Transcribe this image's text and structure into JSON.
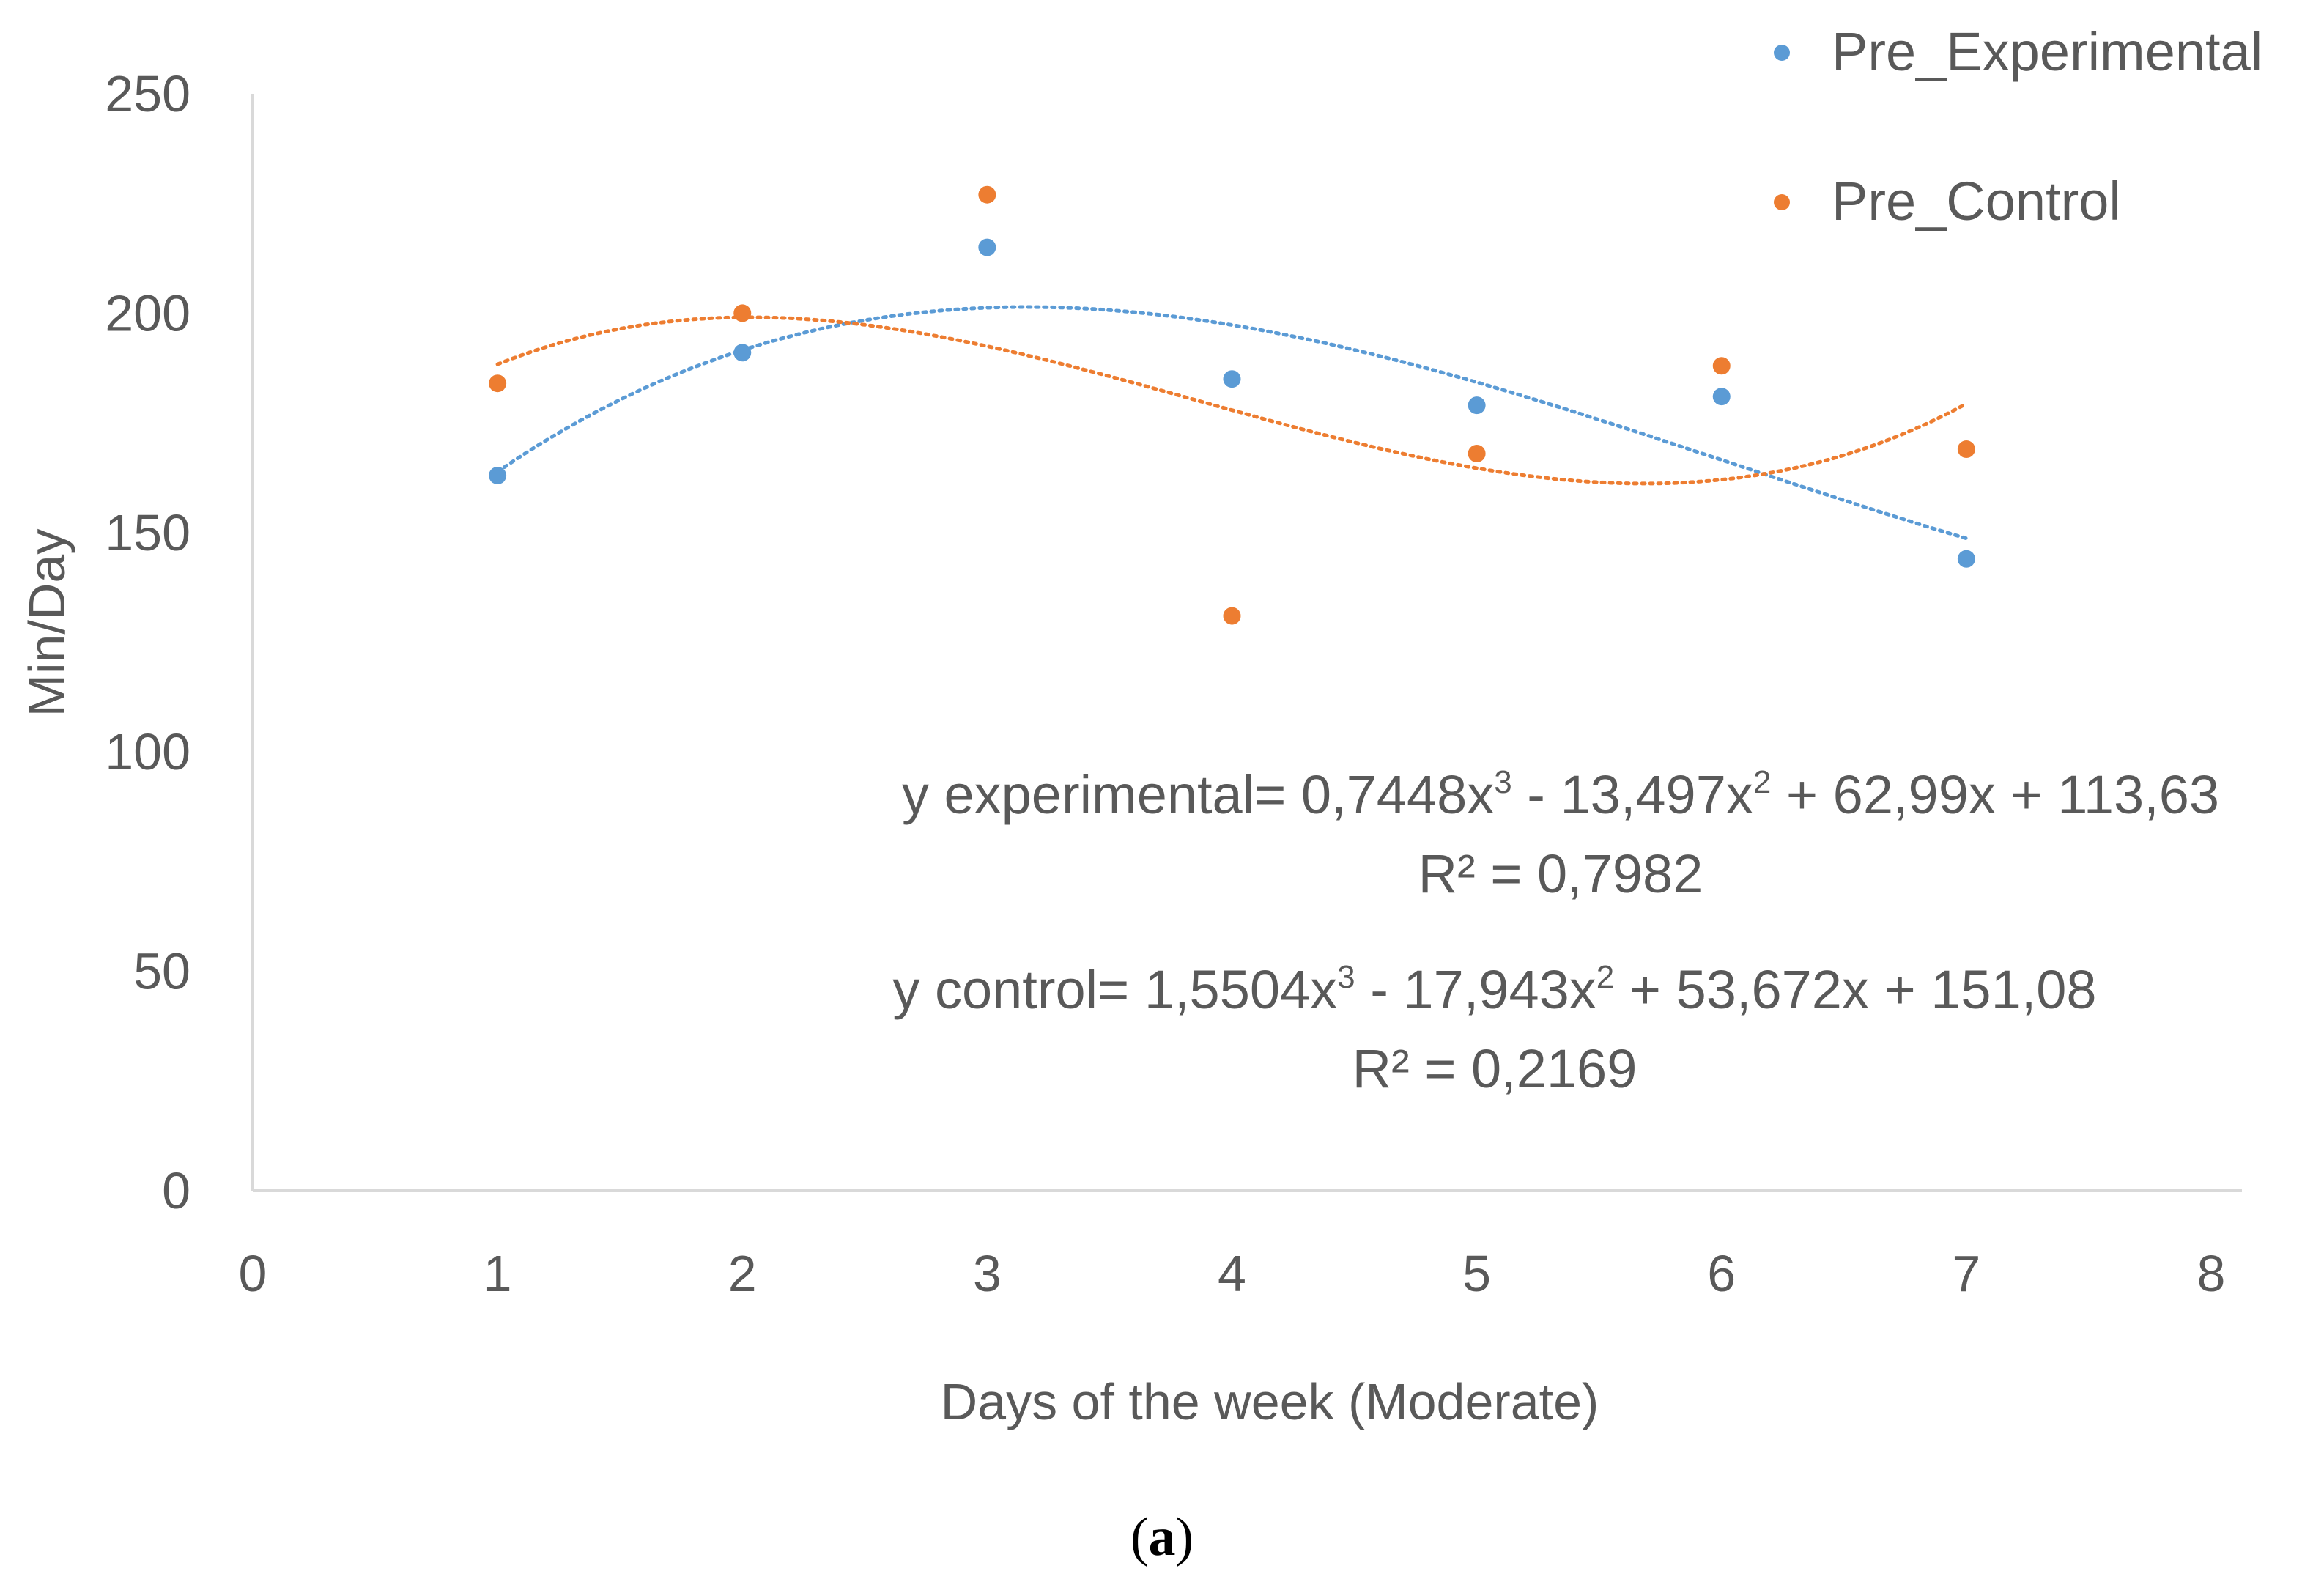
{
  "chart_data": {
    "type": "scatter",
    "xlabel": "Days of the week (Moderate)",
    "ylabel": "Min/Day",
    "xlim": [
      0,
      8
    ],
    "ylim": [
      0,
      250
    ],
    "x_ticks": [
      "0",
      "1",
      "2",
      "3",
      "4",
      "5",
      "6",
      "7",
      "8"
    ],
    "y_ticks": [
      "0",
      "50",
      "100",
      "150",
      "200",
      "250"
    ],
    "grid": false,
    "legend_position": "top-right",
    "series": [
      {
        "name": "Pre_Experimental",
        "color": "#5B9BD5",
        "x": [
          1,
          2,
          3,
          4,
          5,
          6,
          7
        ],
        "y": [
          163,
          191,
          215,
          185,
          179,
          181,
          144
        ],
        "trendline": {
          "type": "polynomial",
          "order": 3,
          "coefficients": [
            0.7448,
            -13.497,
            62.99,
            113.63
          ],
          "r2": 0.7982
        }
      },
      {
        "name": "Pre_Control",
        "color": "#ED7D31",
        "x": [
          1,
          2,
          3,
          4,
          5,
          6,
          7
        ],
        "y": [
          184,
          200,
          227,
          131,
          168,
          188,
          169
        ],
        "trendline": {
          "type": "polynomial",
          "order": 3,
          "coefficients": [
            1.5504,
            -17.943,
            53.672,
            151.08
          ],
          "r2": 0.2169
        }
      }
    ],
    "annotations": {
      "exp_eq_a": "y experimental= 0,7448x",
      "exp_eq_b": " - 13,497x",
      "exp_eq_c": " + 62,99x + 113,63",
      "exp_r2": "R² = 0,7982",
      "ctrl_eq_a": "y control= 1,5504x",
      "ctrl_eq_b": " - 17,943x",
      "ctrl_eq_c": " + 53,672x + 151,08",
      "ctrl_r2": "R² = 0,2169",
      "sup3": "3",
      "sup2": "2"
    }
  },
  "caption": {
    "open": "(",
    "letter": "a",
    "close": ")"
  }
}
